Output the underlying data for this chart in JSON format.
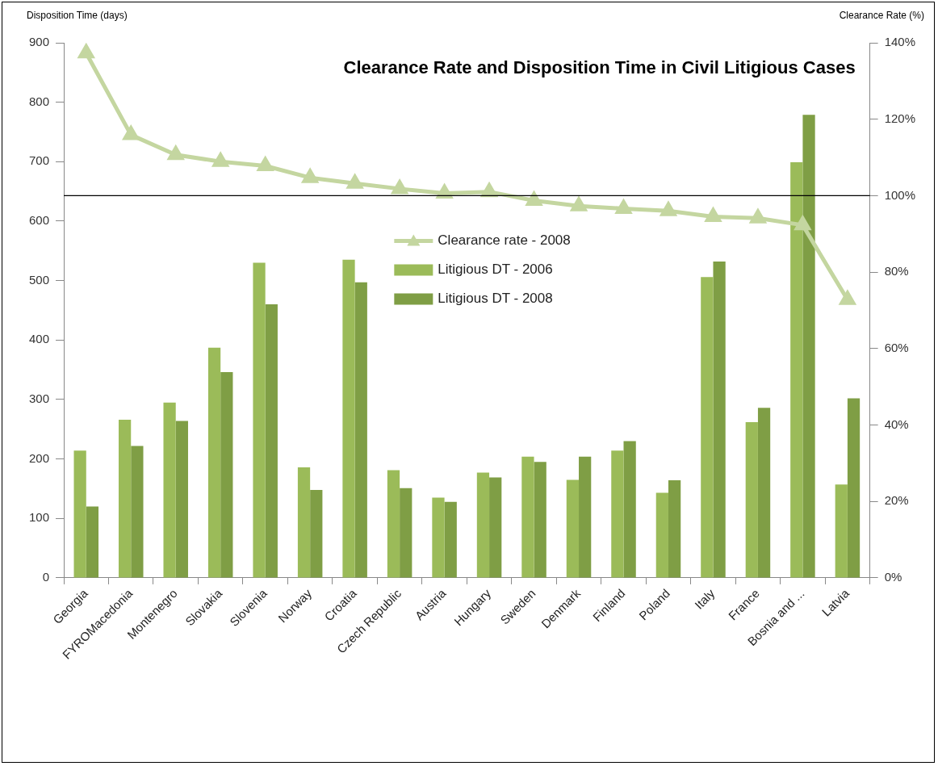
{
  "chart_data": {
    "type": "bar",
    "title": "Clearance Rate and Disposition Time in Civil Litigious Cases",
    "ylabel": "Disposition Time (days)",
    "y2label": "Clearance Rate (%)",
    "categories": [
      "Georgia",
      "FYROMacedonia",
      "Montenegro",
      "Slovakia",
      "Slovenia",
      "Norway",
      "Croatia",
      "Czech Republic",
      "Austria",
      "Hungary",
      "Sweden",
      "Denmark",
      "Finland",
      "Poland",
      "Italy",
      "France",
      "Bosnia and ...",
      "Latvia"
    ],
    "series": [
      {
        "type": "line",
        "axis": "y2",
        "name": "Clearance rate - 2008",
        "color": "#c4d6a0",
        "values": [
          137.3,
          115.9,
          110.7,
          108.9,
          107.8,
          104.7,
          103.2,
          101.8,
          100.6,
          101.0,
          98.7,
          97.3,
          96.6,
          96.0,
          94.5,
          94.1,
          92.3,
          72.8
        ]
      },
      {
        "name": "Litigious DT - 2006",
        "color": "#9bbb59",
        "values": [
          214,
          266,
          295,
          387,
          530,
          186,
          535,
          181,
          135,
          177,
          204,
          165,
          214,
          143,
          506,
          262,
          699,
          157
        ]
      },
      {
        "name": "Litigious DT - 2008",
        "color": "#7f9e45",
        "values": [
          120,
          222,
          264,
          346,
          460,
          148,
          497,
          151,
          128,
          169,
          195,
          204,
          230,
          164,
          532,
          286,
          779,
          302
        ]
      }
    ],
    "ylim": [
      0,
      900
    ],
    "yticks": [
      0,
      100,
      200,
      300,
      400,
      500,
      600,
      700,
      800,
      900
    ],
    "y2lim": [
      0,
      140
    ],
    "y2ticks": [
      {
        "value": 0,
        "label": "0%"
      },
      {
        "value": 20,
        "label": "20%"
      },
      {
        "value": 40,
        "label": "40%"
      },
      {
        "value": 60,
        "label": "60%"
      },
      {
        "value": 80,
        "label": "80%"
      },
      {
        "value": 100,
        "label": "100%"
      },
      {
        "value": 120,
        "label": "120%"
      },
      {
        "value": 140,
        "label": "140%"
      }
    ],
    "ref_lines": [
      {
        "axis": "y2",
        "value": 100,
        "color": "#000000",
        "line_style": "solid"
      }
    ],
    "legend": "center",
    "marker": "triangle",
    "line_style": "solid",
    "grid": false
  }
}
